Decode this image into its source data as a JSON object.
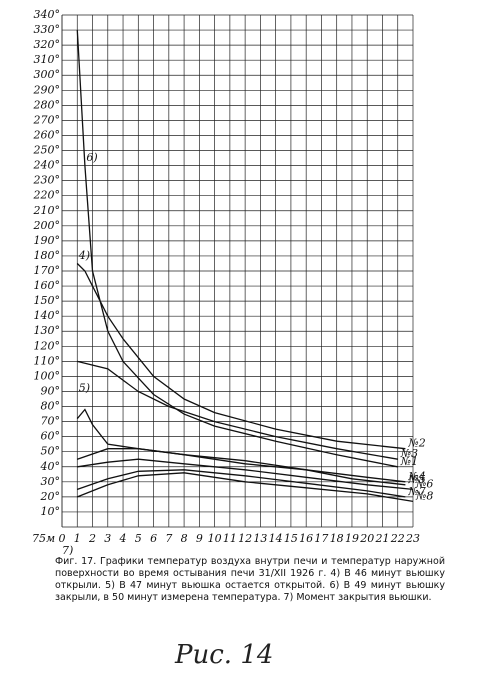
{
  "chart_data": {
    "type": "line",
    "xlim": [
      0,
      23
    ],
    "ylim": [
      0,
      340
    ],
    "xticks": [
      0,
      1,
      2,
      3,
      4,
      5,
      6,
      7,
      8,
      9,
      10,
      11,
      12,
      13,
      14,
      15,
      16,
      17,
      18,
      19,
      20,
      21,
      22,
      23
    ],
    "yticks": [
      {
        "value": 10,
        "label": "10°"
      },
      {
        "value": 20,
        "label": "20°"
      },
      {
        "value": 30,
        "label": "30°"
      },
      {
        "value": 40,
        "label": "40°"
      },
      {
        "value": 50,
        "label": "50°"
      },
      {
        "value": 60,
        "label": "60°"
      },
      {
        "value": 70,
        "label": "70°"
      },
      {
        "value": 80,
        "label": "80°"
      },
      {
        "value": 90,
        "label": "90°"
      },
      {
        "value": 100,
        "label": "100°"
      },
      {
        "value": 110,
        "label": "110°"
      },
      {
        "value": 120,
        "label": "120°"
      },
      {
        "value": 130,
        "label": "130°"
      },
      {
        "value": 140,
        "label": "140°"
      },
      {
        "value": 150,
        "label": "150°"
      },
      {
        "value": 160,
        "label": "160°"
      },
      {
        "value": 170,
        "label": "170°"
      },
      {
        "value": 180,
        "label": "180°"
      },
      {
        "value": 190,
        "label": "190°"
      },
      {
        "value": 200,
        "label": "200°"
      },
      {
        "value": 210,
        "label": "210°"
      },
      {
        "value": 220,
        "label": "220°"
      },
      {
        "value": 230,
        "label": "230°"
      },
      {
        "value": 240,
        "label": "240°"
      },
      {
        "value": 250,
        "label": "250°"
      },
      {
        "value": 260,
        "label": "260°"
      },
      {
        "value": 270,
        "label": "270°"
      },
      {
        "value": 280,
        "label": "280°"
      },
      {
        "value": 290,
        "label": "290°"
      },
      {
        "value": 300,
        "label": "300°"
      },
      {
        "value": 310,
        "label": "310°"
      },
      {
        "value": 320,
        "label": "320°"
      },
      {
        "value": 330,
        "label": "330°"
      },
      {
        "value": 340,
        "label": "340°"
      }
    ],
    "x_origin_label": "75м",
    "grid": true,
    "series": [
      {
        "name": "№1",
        "color": "#111111",
        "x": [
          1,
          1.5,
          2,
          3,
          4,
          6,
          8,
          10,
          14,
          18,
          22
        ],
        "values": [
          330,
          240,
          170,
          130,
          110,
          88,
          75,
          67,
          57,
          48,
          40
        ]
      },
      {
        "name": "№2",
        "color": "#111111",
        "x": [
          1,
          1.5,
          2,
          3,
          4,
          6,
          8,
          10,
          14,
          18,
          22.5
        ],
        "values": [
          175,
          170,
          160,
          140,
          125,
          100,
          85,
          76,
          65,
          57,
          52
        ]
      },
      {
        "name": "№3",
        "color": "#111111",
        "x": [
          1,
          3,
          5,
          7,
          10,
          14,
          18,
          22
        ],
        "values": [
          110,
          105,
          90,
          80,
          70,
          60,
          52,
          45
        ]
      },
      {
        "name": "№4",
        "color": "#111111",
        "x": [
          1,
          1.5,
          2,
          3,
          5,
          8,
          12,
          16,
          20,
          22.5
        ],
        "values": [
          72,
          78,
          68,
          55,
          52,
          48,
          42,
          38,
          33,
          30
        ]
      },
      {
        "name": "№5",
        "color": "#111111",
        "x": [
          1,
          3,
          5,
          8,
          12,
          16,
          19,
          22.5
        ],
        "values": [
          45,
          52,
          52,
          48,
          44,
          38,
          32,
          28
        ]
      },
      {
        "name": "№6",
        "color": "#111111",
        "x": [
          1,
          3,
          5,
          8,
          12,
          16,
          20,
          23
        ],
        "values": [
          40,
          43,
          45,
          42,
          38,
          33,
          28,
          25
        ]
      },
      {
        "name": "№7",
        "color": "#111111",
        "x": [
          1,
          3,
          5,
          8,
          12,
          16,
          20,
          22.5
        ],
        "values": [
          25,
          32,
          37,
          38,
          34,
          29,
          24,
          20
        ]
      },
      {
        "name": "№8",
        "color": "#111111",
        "x": [
          1,
          3,
          5,
          8,
          12,
          16,
          20,
          23
        ],
        "values": [
          20,
          28,
          34,
          36,
          30,
          26,
          22,
          17
        ]
      }
    ],
    "annotations": [
      "4)",
      "5)",
      "6)",
      "7)"
    ],
    "caption": "Фиг. 17. Графики температур воздуха внутри печи и температур наружной поверхности во время остывания печи 31/XII 1926 г. 4) В 46 минут вьюшку открыли. 5) В 47 минут вьюшка остается открытой. 6) В 49 минут вьюшку закрыли, в 50 минут измерена температура. 7) Момент закрытия вьюшки.",
    "figure_label": "Рис. 14"
  }
}
